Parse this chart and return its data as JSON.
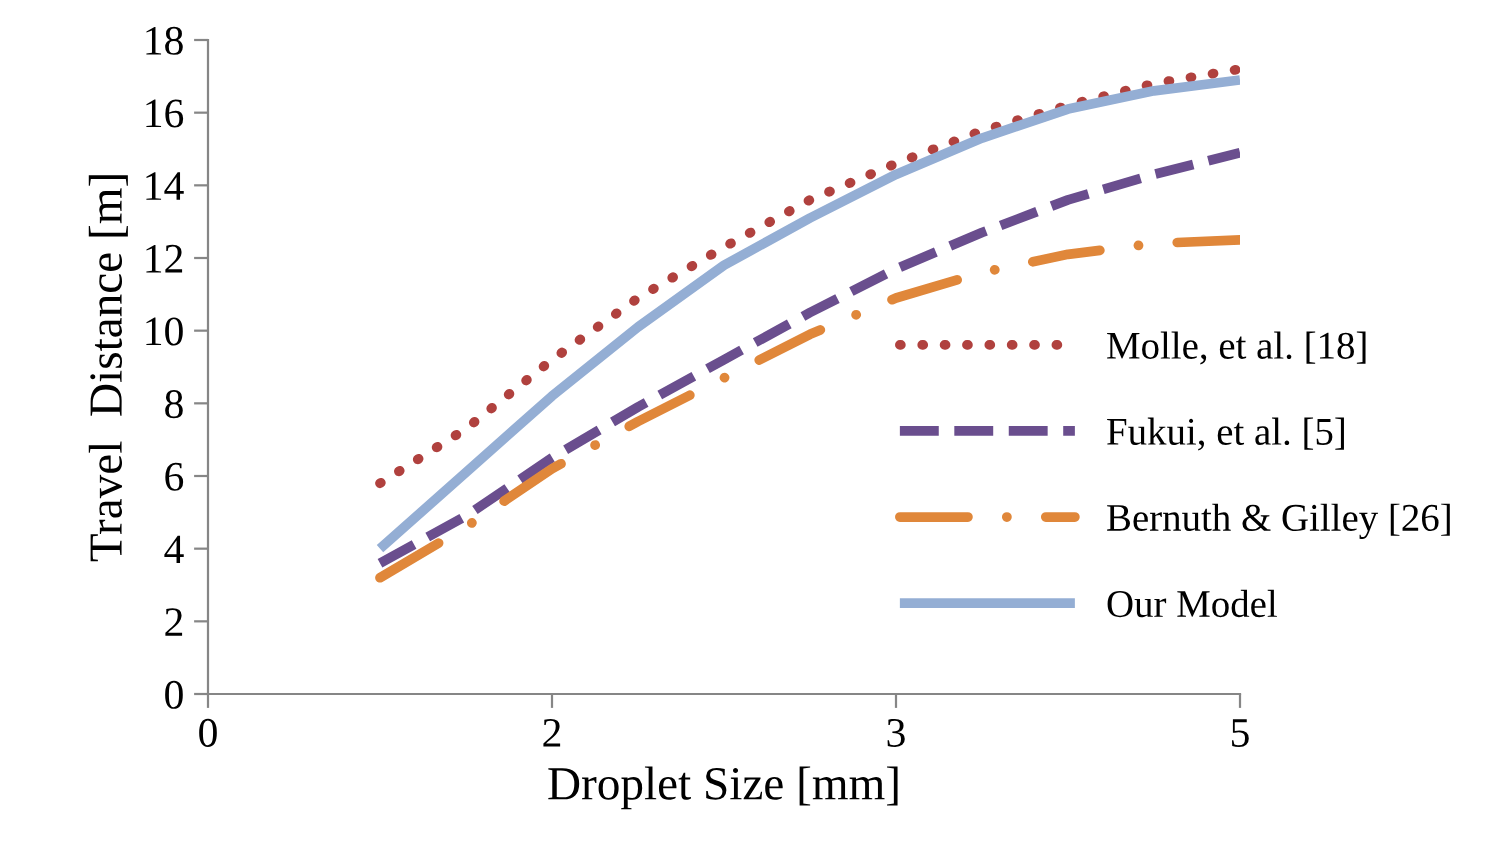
{
  "chart_data": {
    "type": "line",
    "xlabel": "Droplet Size [mm]",
    "ylabel": "Travel  Distance [m]",
    "categories": [
      "0",
      null,
      null,
      null,
      "2",
      null,
      null,
      null,
      "3",
      null,
      null,
      null,
      "5"
    ],
    "ylim": [
      0,
      18
    ],
    "yticks": [
      0,
      2,
      4,
      6,
      8,
      10,
      12,
      14,
      16,
      18
    ],
    "grid": false,
    "legend": "right",
    "marker": "none",
    "series": [
      {
        "name": "Molle, et al. [18]",
        "color": "#b0413e",
        "line_style": "dotted",
        "values": [
          null,
          null,
          5.8,
          7.3,
          9.2,
          10.9,
          12.3,
          13.6,
          14.6,
          15.5,
          16.2,
          16.8,
          17.2
        ]
      },
      {
        "name": "Fukui, et al. [5]",
        "color": "#6a4e8e",
        "line_style": "dashed",
        "values": [
          null,
          null,
          3.6,
          4.9,
          6.5,
          7.9,
          9.2,
          10.5,
          11.7,
          12.7,
          13.6,
          14.3,
          14.9
        ]
      },
      {
        "name": "Bernuth & Gilley [26]",
        "color": "#e0873a",
        "line_style": "dashdot",
        "values": [
          null,
          null,
          3.2,
          4.6,
          6.2,
          7.5,
          8.7,
          9.9,
          10.9,
          11.6,
          12.1,
          12.4,
          12.5
        ]
      },
      {
        "name": "Our Model",
        "color": "#94aed4",
        "line_style": "solid",
        "values": [
          null,
          null,
          4.0,
          6.1,
          8.2,
          10.1,
          11.8,
          13.1,
          14.3,
          15.3,
          16.1,
          16.6,
          16.9
        ]
      }
    ]
  }
}
